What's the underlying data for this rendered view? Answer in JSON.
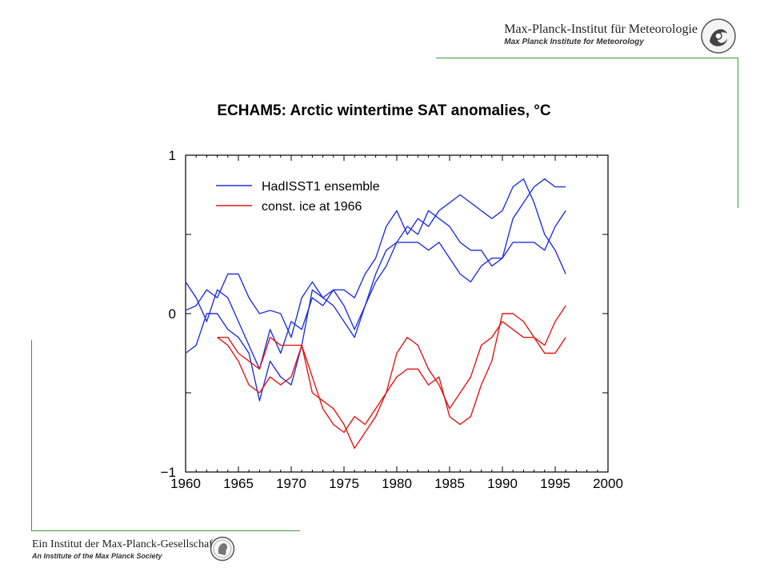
{
  "header": {
    "institute_de": "Max-Planck-Institut für Meteorologie",
    "institute_en": "Max Planck Institute for Meteorology"
  },
  "footer": {
    "society_de": "Ein Institut der Max-Planck-Gesellschaft",
    "society_en": "An Institute of the Max Planck Society"
  },
  "colors": {
    "accent_rule": "#3a9a3a",
    "blue_series": "#2233dd",
    "red_series": "#e01818"
  },
  "chart_data": {
    "type": "line",
    "title": "ECHAM5: Arctic wintertime SAT anomalies, °C",
    "xlabel": "",
    "ylabel": "",
    "xlim": [
      1960,
      2000
    ],
    "ylim": [
      -1,
      1
    ],
    "xticks": [
      1960,
      1965,
      1970,
      1975,
      1980,
      1985,
      1990,
      1995,
      2000
    ],
    "yticks": [
      {
        "value": 1,
        "label": "1"
      },
      {
        "value": 0,
        "label": "0"
      },
      {
        "value": -1,
        "label": "−1"
      }
    ],
    "grid": false,
    "legend_position": "top-left",
    "legend": [
      {
        "name": "HadISST1 ensemble",
        "color": "#2233dd"
      },
      {
        "name": "const. ice at 1966",
        "color": "#e01818"
      }
    ],
    "x": [
      1960,
      1961,
      1962,
      1963,
      1964,
      1965,
      1966,
      1967,
      1968,
      1969,
      1970,
      1971,
      1972,
      1973,
      1974,
      1975,
      1976,
      1977,
      1978,
      1979,
      1980,
      1981,
      1982,
      1983,
      1984,
      1985,
      1986,
      1987,
      1988,
      1989,
      1990,
      1991,
      1992,
      1993,
      1994,
      1995,
      1996
    ],
    "series": [
      {
        "group": "HadISST1 ensemble",
        "color": "#2233dd",
        "values": [
          0.2,
          0.1,
          -0.05,
          0.15,
          0.1,
          -0.05,
          -0.2,
          -0.35,
          -0.1,
          -0.25,
          -0.05,
          -0.1,
          0.1,
          0.05,
          0.15,
          0.15,
          0.1,
          0.25,
          0.35,
          0.55,
          0.65,
          0.5,
          0.6,
          0.55,
          0.65,
          0.7,
          0.75,
          0.7,
          0.65,
          0.6,
          0.65,
          0.8,
          0.85,
          0.7,
          0.5,
          0.4,
          0.25
        ]
      },
      {
        "group": "HadISST1 ensemble",
        "color": "#2233dd",
        "values": [
          0.02,
          0.05,
          0.15,
          0.1,
          0.25,
          0.25,
          0.1,
          0.0,
          0.02,
          0.0,
          -0.15,
          0.1,
          0.2,
          0.1,
          0.15,
          0.05,
          -0.1,
          0.05,
          0.25,
          0.4,
          0.45,
          0.55,
          0.5,
          0.65,
          0.6,
          0.55,
          0.45,
          0.4,
          0.4,
          0.3,
          0.35,
          0.45,
          0.45,
          0.45,
          0.4,
          0.55,
          0.65
        ]
      },
      {
        "group": "HadISST1 ensemble",
        "color": "#2233dd",
        "values": [
          -0.25,
          -0.2,
          0.0,
          0.0,
          -0.1,
          -0.15,
          -0.25,
          -0.55,
          -0.3,
          -0.4,
          -0.45,
          -0.2,
          0.15,
          0.1,
          0.05,
          -0.05,
          -0.15,
          0.05,
          0.2,
          0.3,
          0.45,
          0.45,
          0.45,
          0.4,
          0.45,
          0.35,
          0.25,
          0.2,
          0.3,
          0.35,
          0.35,
          0.6,
          0.7,
          0.8,
          0.85,
          0.8,
          0.8
        ]
      },
      {
        "group": "const. ice at 1966",
        "color": "#e01818",
        "values": [
          null,
          null,
          null,
          -0.15,
          -0.2,
          -0.3,
          -0.45,
          -0.5,
          -0.4,
          -0.45,
          -0.4,
          -0.2,
          -0.5,
          -0.55,
          -0.6,
          -0.7,
          -0.85,
          -0.75,
          -0.65,
          -0.5,
          -0.25,
          -0.15,
          -0.2,
          -0.35,
          -0.45,
          -0.6,
          -0.5,
          -0.4,
          -0.2,
          -0.15,
          -0.05,
          -0.1,
          -0.15,
          -0.15,
          -0.2,
          -0.05,
          0.05
        ]
      },
      {
        "group": "const. ice at 1966",
        "color": "#e01818",
        "values": [
          null,
          null,
          null,
          -0.15,
          -0.15,
          -0.25,
          -0.3,
          -0.35,
          -0.15,
          -0.2,
          -0.2,
          -0.2,
          -0.4,
          -0.6,
          -0.7,
          -0.75,
          -0.65,
          -0.7,
          -0.6,
          -0.5,
          -0.4,
          -0.35,
          -0.35,
          -0.45,
          -0.4,
          -0.65,
          -0.7,
          -0.65,
          -0.45,
          -0.3,
          0.0,
          0.0,
          -0.05,
          -0.15,
          -0.25,
          -0.25,
          -0.15
        ]
      }
    ]
  }
}
